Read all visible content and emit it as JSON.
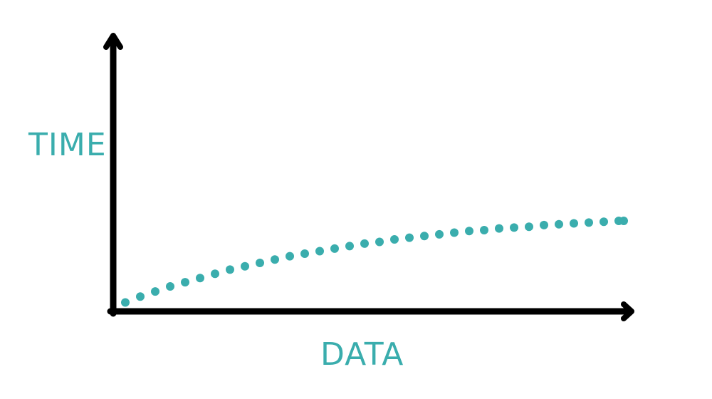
{
  "chart_data": {
    "type": "scatter",
    "xlabel": "DATA",
    "ylabel": "TIME",
    "grid": false,
    "legend": "none",
    "axis_ticks": "none",
    "style": "hand-drawn dotted curve",
    "series": [
      {
        "curve_shape": "logarithmic growth, flattening",
        "x": [
          0.0,
          0.03,
          0.06,
          0.09,
          0.12,
          0.15,
          0.18,
          0.21,
          0.24,
          0.27,
          0.3,
          0.33,
          0.36,
          0.39,
          0.42,
          0.45,
          0.48,
          0.51,
          0.54,
          0.57,
          0.6,
          0.63,
          0.66,
          0.69,
          0.72,
          0.75,
          0.78,
          0.81,
          0.84,
          0.87,
          0.9,
          0.93,
          0.96,
          0.99,
          1.0
        ],
        "y": [
          0.03,
          0.1,
          0.16,
          0.22,
          0.27,
          0.32,
          0.37,
          0.42,
          0.46,
          0.5,
          0.54,
          0.58,
          0.61,
          0.64,
          0.67,
          0.7,
          0.73,
          0.75,
          0.78,
          0.8,
          0.82,
          0.84,
          0.86,
          0.88,
          0.89,
          0.91,
          0.92,
          0.93,
          0.95,
          0.96,
          0.97,
          0.98,
          0.99,
          1.0,
          1.0
        ]
      }
    ]
  },
  "colors": {
    "axis": "#000000",
    "accent": "#3aadad"
  }
}
